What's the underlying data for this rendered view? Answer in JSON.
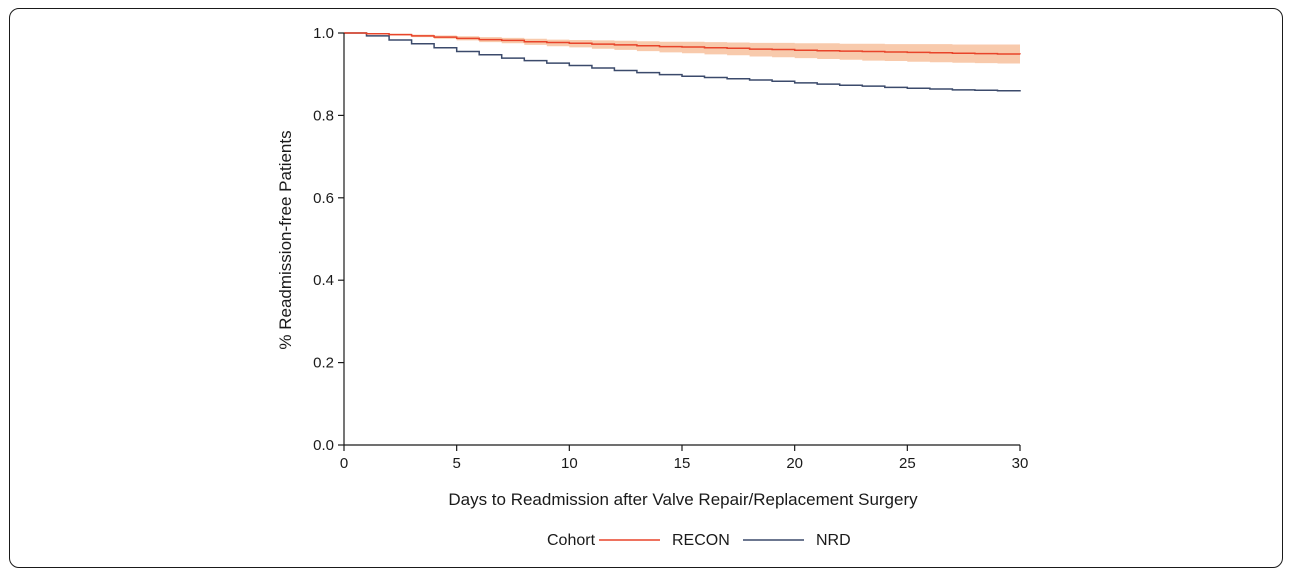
{
  "chart_data": {
    "type": "line",
    "title": "",
    "xlabel": "Days to Readmission after Valve Repair/Replacement Surgery",
    "ylabel": "% Readmission-free Patients",
    "xlim": [
      0,
      30
    ],
    "ylim": [
      0,
      1.0
    ],
    "xticks": [
      0,
      5,
      10,
      15,
      20,
      25,
      30
    ],
    "xtick_labels": [
      "0",
      "5",
      "10",
      "15",
      "20",
      "25",
      "30"
    ],
    "yticks": [
      0.0,
      0.2,
      0.4,
      0.6,
      0.8,
      1.0
    ],
    "ytick_labels": [
      "0.0",
      "0.2",
      "0.4",
      "0.6",
      "0.8",
      "1.0"
    ],
    "grid": false,
    "legend": {
      "title": "Cohort",
      "placement": "bottom",
      "entries": [
        "RECON",
        "NRD"
      ]
    },
    "series": [
      {
        "name": "RECON",
        "color": "#e8442a",
        "band_color": "#f7c4a3",
        "step": true,
        "x": [
          0,
          1,
          2,
          3,
          4,
          5,
          6,
          7,
          8,
          9,
          10,
          11,
          12,
          13,
          14,
          15,
          16,
          17,
          18,
          19,
          20,
          21,
          22,
          23,
          24,
          25,
          26,
          27,
          28,
          29,
          30
        ],
        "y": [
          1.0,
          0.998,
          0.996,
          0.993,
          0.99,
          0.987,
          0.984,
          0.982,
          0.979,
          0.977,
          0.975,
          0.973,
          0.971,
          0.969,
          0.967,
          0.966,
          0.964,
          0.963,
          0.961,
          0.96,
          0.958,
          0.957,
          0.956,
          0.955,
          0.954,
          0.953,
          0.952,
          0.951,
          0.95,
          0.949,
          0.948
        ],
        "ci_lower": [
          1.0,
          0.997,
          0.994,
          0.99,
          0.986,
          0.982,
          0.978,
          0.975,
          0.971,
          0.968,
          0.965,
          0.962,
          0.959,
          0.956,
          0.953,
          0.951,
          0.948,
          0.946,
          0.943,
          0.941,
          0.939,
          0.937,
          0.935,
          0.933,
          0.932,
          0.93,
          0.929,
          0.928,
          0.927,
          0.926,
          0.925
        ],
        "ci_upper": [
          1.0,
          0.999,
          0.998,
          0.996,
          0.994,
          0.992,
          0.99,
          0.988,
          0.986,
          0.984,
          0.983,
          0.982,
          0.981,
          0.98,
          0.979,
          0.979,
          0.978,
          0.977,
          0.976,
          0.976,
          0.975,
          0.975,
          0.974,
          0.974,
          0.973,
          0.973,
          0.973,
          0.972,
          0.972,
          0.972,
          0.972
        ]
      },
      {
        "name": "NRD",
        "color": "#3b4a6b",
        "step": true,
        "x": [
          0,
          1,
          2,
          3,
          4,
          5,
          6,
          7,
          8,
          9,
          10,
          11,
          12,
          13,
          14,
          15,
          16,
          17,
          18,
          19,
          20,
          21,
          22,
          23,
          24,
          25,
          26,
          27,
          28,
          29,
          30
        ],
        "y": [
          1.0,
          0.993,
          0.983,
          0.974,
          0.964,
          0.955,
          0.947,
          0.939,
          0.933,
          0.927,
          0.921,
          0.915,
          0.909,
          0.904,
          0.899,
          0.895,
          0.892,
          0.889,
          0.886,
          0.883,
          0.879,
          0.876,
          0.873,
          0.871,
          0.868,
          0.866,
          0.864,
          0.862,
          0.861,
          0.86,
          0.858
        ]
      }
    ]
  },
  "colors": {
    "recon_line": "#e8442a",
    "recon_band": "#f7c4a3",
    "nrd_line": "#3b4a6b",
    "axis": "#1a1a1a"
  }
}
